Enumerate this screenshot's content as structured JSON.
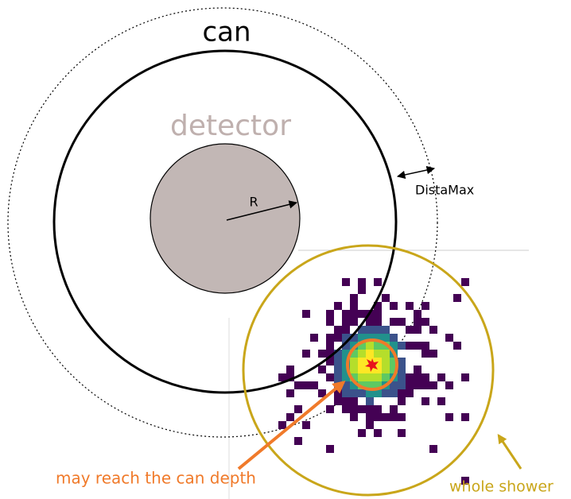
{
  "labels": {
    "can": "can",
    "detector": "detector",
    "radius": "R",
    "distamax": "DistaMax",
    "can_depth": "may reach the can depth",
    "shower": "whole shower"
  }
}
